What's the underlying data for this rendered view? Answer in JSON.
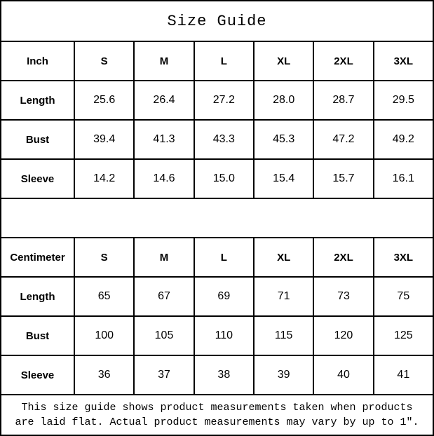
{
  "title": "Size Guide",
  "tables": [
    {
      "unit": "Inch",
      "sizes": [
        "S",
        "M",
        "L",
        "XL",
        "2XL",
        "3XL"
      ],
      "rows": [
        {
          "label": "Length",
          "values": [
            "25.6",
            "26.4",
            "27.2",
            "28.0",
            "28.7",
            "29.5"
          ]
        },
        {
          "label": "Bust",
          "values": [
            "39.4",
            "41.3",
            "43.3",
            "45.3",
            "47.2",
            "49.2"
          ]
        },
        {
          "label": "Sleeve",
          "values": [
            "14.2",
            "14.6",
            "15.0",
            "15.4",
            "15.7",
            "16.1"
          ]
        }
      ]
    },
    {
      "unit": "Centimeter",
      "sizes": [
        "S",
        "M",
        "L",
        "XL",
        "2XL",
        "3XL"
      ],
      "rows": [
        {
          "label": "Length",
          "values": [
            "65",
            "67",
            "69",
            "71",
            "73",
            "75"
          ]
        },
        {
          "label": "Bust",
          "values": [
            "100",
            "105",
            "110",
            "115",
            "120",
            "125"
          ]
        },
        {
          "label": "Sleeve",
          "values": [
            "36",
            "37",
            "38",
            "39",
            "40",
            "41"
          ]
        }
      ]
    }
  ],
  "footer": {
    "line1": "This size guide shows product measurements taken when products",
    "line2": "are laid flat. Actual product measurements may vary by up to 1″."
  },
  "colors": {
    "background": "#ffffff",
    "border": "#000000",
    "text": "#000000"
  },
  "chart_data": [
    {
      "type": "table",
      "title": "Size Guide",
      "unit": "Inch",
      "columns": [
        "Inch",
        "S",
        "M",
        "L",
        "XL",
        "2XL",
        "3XL"
      ],
      "rows": [
        [
          "Length",
          25.6,
          26.4,
          27.2,
          28.0,
          28.7,
          29.5
        ],
        [
          "Bust",
          39.4,
          41.3,
          43.3,
          45.3,
          47.2,
          49.2
        ],
        [
          "Sleeve",
          14.2,
          14.6,
          15.0,
          15.4,
          15.7,
          16.1
        ]
      ]
    },
    {
      "type": "table",
      "title": "Size Guide",
      "unit": "Centimeter",
      "columns": [
        "Centimeter",
        "S",
        "M",
        "L",
        "XL",
        "2XL",
        "3XL"
      ],
      "rows": [
        [
          "Length",
          65,
          67,
          69,
          71,
          73,
          75
        ],
        [
          "Bust",
          100,
          105,
          110,
          115,
          120,
          125
        ],
        [
          "Sleeve",
          36,
          37,
          38,
          39,
          40,
          41
        ]
      ]
    }
  ]
}
